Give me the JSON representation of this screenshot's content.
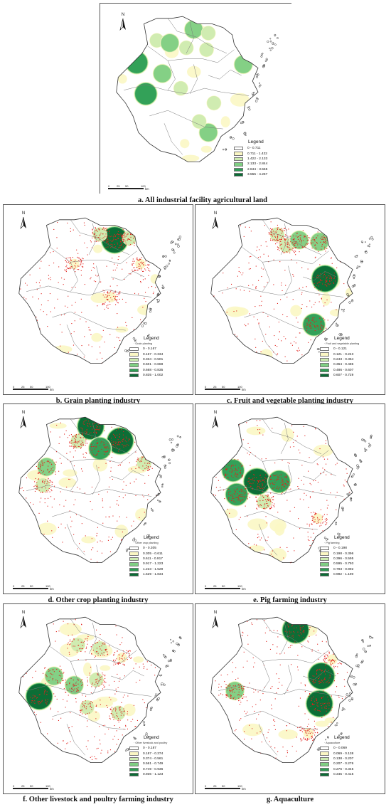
{
  "panels": [
    {
      "caption": "a. All industrial facility agricultural land",
      "legend_title": "Legend",
      "layer_label": "",
      "classes": [
        "0 - 0.711",
        "0.711 - 1.422",
        "1.422 - 2.133",
        "2.133 - 2.844",
        "2.844 - 3.555",
        "3.555 - 4.267"
      ],
      "hotspots": [
        {
          "lon": 119.2,
          "lat": 30.55,
          "level": 2
        },
        {
          "lon": 119.55,
          "lat": 30.48,
          "level": 3
        },
        {
          "lon": 120.2,
          "lat": 30.85,
          "level": 3
        },
        {
          "lon": 120.6,
          "lat": 30.75,
          "level": 2
        },
        {
          "lon": 120.0,
          "lat": 30.35,
          "level": 2
        },
        {
          "lon": 118.65,
          "lat": 29.95,
          "level": 4
        },
        {
          "lon": 119.35,
          "lat": 29.65,
          "level": 3
        },
        {
          "lon": 118.9,
          "lat": 29.1,
          "level": 4
        },
        {
          "lon": 120.55,
          "lat": 30.3,
          "level": 2
        },
        {
          "lon": 121.55,
          "lat": 29.9,
          "level": 3
        },
        {
          "lon": 119.85,
          "lat": 29.25,
          "level": 2
        },
        {
          "lon": 120.75,
          "lat": 28.85,
          "level": 2
        },
        {
          "lon": 120.6,
          "lat": 28.05,
          "level": 3
        },
        {
          "lon": 120.35,
          "lat": 28.35,
          "level": 2
        }
      ],
      "points": false
    },
    {
      "caption": "b. Grain planting industry",
      "legend_title": "Legend",
      "layer_label": "Grain planting",
      "classes": [
        "0 - 0.167",
        "0.167 - 0.334",
        "0.334 - 0.501",
        "0.501 - 0.668",
        "0.668 - 0.835",
        "0.835 - 1.002"
      ],
      "hotspots": [
        {
          "lon": 120.7,
          "lat": 30.6,
          "level": 5
        },
        {
          "lon": 120.3,
          "lat": 30.75,
          "level": 2
        },
        {
          "lon": 121.1,
          "lat": 30.65,
          "level": 2
        },
        {
          "lon": 119.6,
          "lat": 29.95,
          "level": 1
        },
        {
          "lon": 120.6,
          "lat": 29.05,
          "level": 1
        },
        {
          "lon": 121.4,
          "lat": 29.95,
          "level": 1
        }
      ],
      "points": true
    },
    {
      "caption": "c. Fruit and vegetable planting industry",
      "legend_title": "Legend",
      "layer_label": "Fruit and vegetable planting",
      "classes": [
        "0 - 0.121",
        "0.121 - 0.243",
        "0.243 - 0.364",
        "0.364 - 0.486",
        "0.486 - 0.607",
        "0.607 - 0.729"
      ],
      "hotspots": [
        {
          "lon": 120.15,
          "lat": 30.45,
          "level": 2
        },
        {
          "lon": 120.5,
          "lat": 30.6,
          "level": 3
        },
        {
          "lon": 121.05,
          "lat": 30.55,
          "level": 3
        },
        {
          "lon": 121.2,
          "lat": 29.55,
          "level": 5
        },
        {
          "lon": 120.9,
          "lat": 28.3,
          "level": 4
        },
        {
          "lon": 119.9,
          "lat": 30.75,
          "level": 2
        }
      ],
      "points": true
    },
    {
      "caption": "d. Other crop planting industry",
      "legend_title": "Legend",
      "layer_label": "Other crop planting",
      "classes": [
        "0 - 0.305",
        "0.305 - 0.611",
        "0.611 - 0.917",
        "0.917 - 1.223",
        "1.223 - 1.529",
        "1.529 - 1.834"
      ],
      "hotspots": [
        {
          "lon": 120.05,
          "lat": 30.95,
          "level": 5
        },
        {
          "lon": 120.85,
          "lat": 30.55,
          "level": 5
        },
        {
          "lon": 120.3,
          "lat": 30.35,
          "level": 4
        },
        {
          "lon": 118.85,
          "lat": 29.85,
          "level": 3
        },
        {
          "lon": 119.7,
          "lat": 30.55,
          "level": 2
        },
        {
          "lon": 121.5,
          "lat": 29.95,
          "level": 2
        },
        {
          "lon": 118.75,
          "lat": 29.35,
          "level": 2
        }
      ],
      "points": true
    },
    {
      "caption": "e. Pig farming industry",
      "legend_title": "Legend",
      "layer_label": "Pig farming",
      "classes": [
        "0 - 0.198",
        "0.198 - 0.396",
        "0.396 - 0.595",
        "0.595 - 0.793",
        "0.793 - 0.992",
        "0.992 - 1.190"
      ],
      "hotspots": [
        {
          "lon": 118.7,
          "lat": 29.75,
          "level": 4
        },
        {
          "lon": 119.35,
          "lat": 29.45,
          "level": 5
        },
        {
          "lon": 119.95,
          "lat": 29.45,
          "level": 4
        },
        {
          "lon": 118.8,
          "lat": 29.1,
          "level": 4
        },
        {
          "lon": 119.55,
          "lat": 28.9,
          "level": 2
        },
        {
          "lon": 121.0,
          "lat": 28.45,
          "level": 1
        }
      ],
      "points": true
    },
    {
      "caption": "f. Other livestock and poultry farming industry",
      "legend_title": "Legend",
      "layer_label": "Other livestock and poultry",
      "classes": [
        "0 - 0.187",
        "0.187 - 0.374",
        "0.374 - 0.561",
        "0.561 - 0.749",
        "0.749 - 0.936",
        "0.936 - 1.123"
      ],
      "hotspots": [
        {
          "lon": 118.65,
          "lat": 29.05,
          "level": 5
        },
        {
          "lon": 119.05,
          "lat": 29.6,
          "level": 3
        },
        {
          "lon": 119.6,
          "lat": 29.35,
          "level": 3
        },
        {
          "lon": 120.2,
          "lat": 29.5,
          "level": 2
        },
        {
          "lon": 119.95,
          "lat": 28.75,
          "level": 2
        },
        {
          "lon": 120.8,
          "lat": 28.6,
          "level": 2
        },
        {
          "lon": 120.3,
          "lat": 30.35,
          "level": 2
        },
        {
          "lon": 119.7,
          "lat": 30.45,
          "level": 2
        },
        {
          "lon": 120.9,
          "lat": 30.1,
          "level": 1
        }
      ],
      "points": true
    },
    {
      "caption": "g. Aquaculture",
      "legend_title": "Legend",
      "layer_label": "Aquaculture",
      "classes": [
        "0 - 0.069",
        "0.069 - 0.138",
        "0.138 - 0.207",
        "0.207 - 0.276",
        "0.276 - 0.345",
        "0.345 - 0.415"
      ],
      "hotspots": [
        {
          "lon": 120.4,
          "lat": 30.85,
          "level": 5
        },
        {
          "lon": 121.1,
          "lat": 29.6,
          "level": 5
        },
        {
          "lon": 121.05,
          "lat": 28.85,
          "level": 5
        },
        {
          "lon": 118.75,
          "lat": 29.2,
          "level": 3
        },
        {
          "lon": 121.4,
          "lat": 30.05,
          "level": 1
        },
        {
          "lon": 120.75,
          "lat": 28.05,
          "level": 1
        }
      ],
      "points": true
    }
  ],
  "north_label": "N",
  "scale_ticks": [
    "0",
    "25",
    "50",
    "100"
  ],
  "scale_unit": "km",
  "colors": {
    "class_fills": [
      "#ffffff",
      "#fbf7c4",
      "#cdebb0",
      "#7fcf83",
      "#2e9e55",
      "#0b6b35"
    ],
    "point_color": "#e0201b",
    "boundary": "#7a7a7a",
    "outline": "#333333"
  },
  "icons": {
    "north_arrow": "north-arrow-icon"
  }
}
